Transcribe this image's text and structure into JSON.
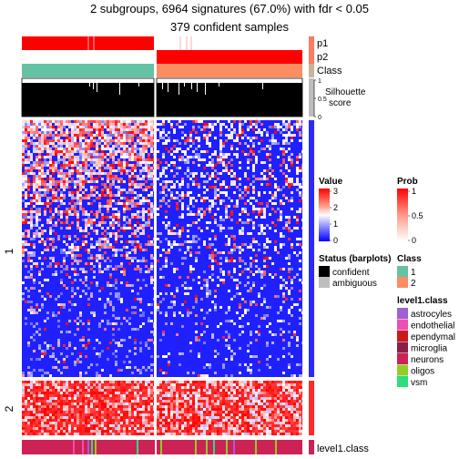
{
  "title_line1": "2 subgroups, 6964 signatures (67.0%) with fdr < 0.05",
  "title_line2": "379 confident samples",
  "annotation_labels": {
    "p1": "p1",
    "p2": "p2",
    "class": "Class",
    "silhouette": "Silhouette\nscore",
    "bottom": "level1.class"
  },
  "silhouette_ticks": [
    "1",
    "0.5",
    "0"
  ],
  "row_split_labels": [
    "1",
    "2"
  ],
  "colors": {
    "prob_red": "#ff0000",
    "class1": "#66c2a5",
    "class2": "#fc8d62",
    "value_low": "#0000ff",
    "value_mid": "#ffffff",
    "value_high": "#ff0000",
    "confident": "#000000",
    "ambiguous": "#bebebe"
  },
  "legends": {
    "value": {
      "title": "Value",
      "ticks": [
        "3",
        "2",
        "1",
        "0"
      ]
    },
    "prob": {
      "title": "Prob",
      "ticks": [
        "1",
        "0.5",
        "0"
      ]
    },
    "status": {
      "title": "Status (barplots)",
      "items": [
        {
          "label": "confident",
          "color": "#000000"
        },
        {
          "label": "ambiguous",
          "color": "#bebebe"
        }
      ]
    },
    "class": {
      "title": "Class",
      "items": [
        {
          "label": "1",
          "color": "#66c2a5"
        },
        {
          "label": "2",
          "color": "#fc8d62"
        }
      ]
    },
    "level1": {
      "title": "level1.class",
      "items": [
        {
          "label": "astrocyles",
          "color": "#a05fd2"
        },
        {
          "label": "endothelial",
          "color": "#ee4fb3"
        },
        {
          "label": "ependymal",
          "color": "#cc1a1a"
        },
        {
          "label": "microglia",
          "color": "#8b1f45"
        },
        {
          "label": "neurons",
          "color": "#cc2255"
        },
        {
          "label": "oligos",
          "color": "#8fce2a"
        },
        {
          "label": "vsm",
          "color": "#2edd7c"
        }
      ]
    }
  },
  "chart_data": {
    "type": "heatmap",
    "title": "2 subgroups, 6964 signatures (67.0%) with fdr < 0.05",
    "subtitle": "379 confident samples",
    "column_groups": [
      {
        "class": "1",
        "p1": 1,
        "p2": 0
      },
      {
        "class": "2",
        "p1": 0,
        "p2": 1
      }
    ],
    "row_groups": [
      "1",
      "2"
    ],
    "value_range": [
      0,
      3
    ],
    "silhouette_range": [
      0,
      1
    ]
  }
}
